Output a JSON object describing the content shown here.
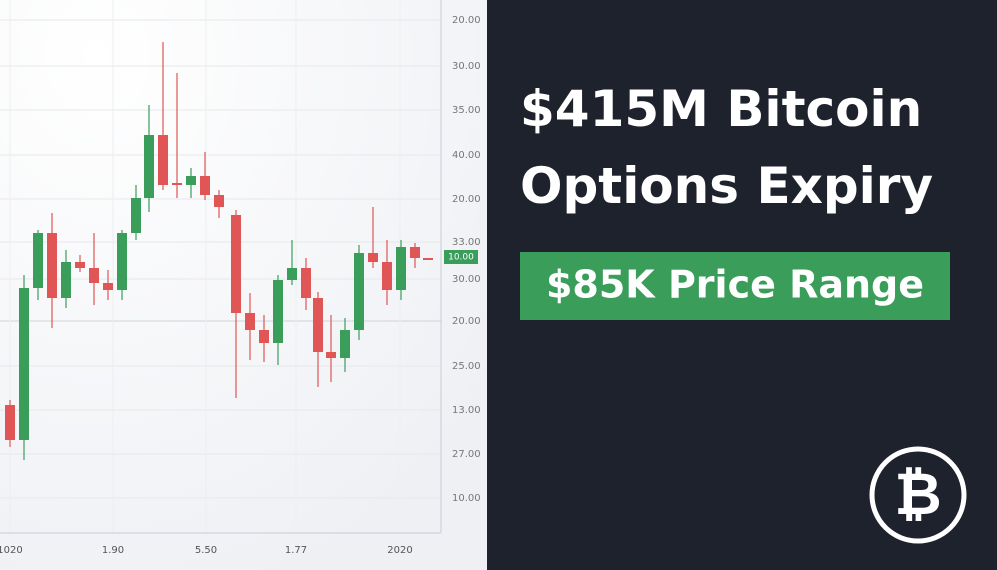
{
  "headline": {
    "line1": "$415M Bitcoin",
    "line2": "Options Expiry"
  },
  "badge": "$85K Price Range",
  "chart": {
    "y_labels": [
      "20.00",
      "30.00",
      "35.00",
      "40.00",
      "20.00",
      "33.00",
      "30.00",
      "20.00",
      "25.00",
      "13.00",
      "27.00",
      "10.00"
    ],
    "current_label": "10.00",
    "x_labels": [
      "1020",
      "1.90",
      "5.50",
      "1.77",
      "2020"
    ]
  }
}
